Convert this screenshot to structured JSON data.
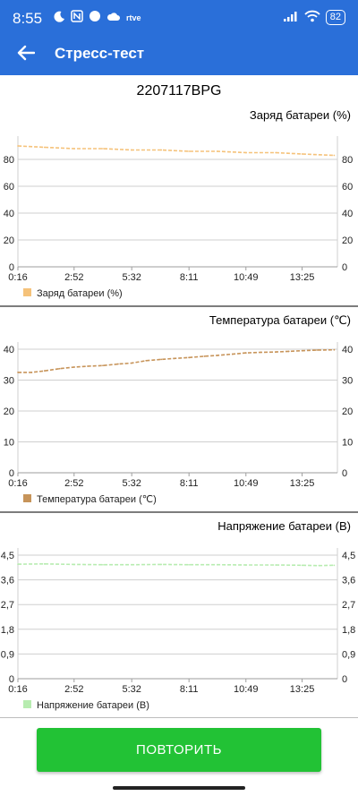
{
  "status": {
    "time": "8:55",
    "left_icons": [
      "moon-icon",
      "nfc-icon",
      "app-icon",
      "cloud-icon",
      "rtve-icon"
    ],
    "rtve_label": "rtve",
    "battery": "82"
  },
  "header": {
    "title": "Стресс-тест"
  },
  "device": {
    "model": "2207117BPG"
  },
  "actions": {
    "retry_label": "ПОВТОРИТЬ"
  },
  "chart_data": [
    {
      "type": "line",
      "title": "Заряд батареи (%)",
      "legend": "Заряд батареи (%)",
      "color": "#f5c27a",
      "x_ticks": [
        "0:16",
        "2:52",
        "5:32",
        "8:11",
        "10:49",
        "13:25"
      ],
      "y_ticks": [
        "0",
        "20",
        "40",
        "60",
        "80"
      ],
      "ylim": [
        0,
        92
      ],
      "grid": true,
      "legend_position": "bottom-left",
      "series": [
        {
          "name": "Заряд батареи (%)",
          "x": [
            0.27,
            1.5,
            2.87,
            4.2,
            5.53,
            6.9,
            8.18,
            9.5,
            10.82,
            12.2,
            13.42,
            14.9
          ],
          "y": [
            90,
            89,
            88,
            88,
            87,
            87,
            86,
            86,
            85,
            85,
            84,
            83
          ]
        }
      ]
    },
    {
      "type": "line",
      "title": "Температура батареи (℃)",
      "legend": "Температура батареи (℃)",
      "color": "#c7945a",
      "x_ticks": [
        "0:16",
        "2:52",
        "5:32",
        "8:11",
        "10:49",
        "13:25"
      ],
      "y_ticks": [
        "0",
        "10",
        "20",
        "30",
        "40"
      ],
      "ylim": [
        0,
        40
      ],
      "grid": true,
      "legend_position": "bottom-left",
      "series": [
        {
          "name": "Температура батареи (℃)",
          "x": [
            0.27,
            0.9,
            1.5,
            2.2,
            2.87,
            3.5,
            4.2,
            4.9,
            5.53,
            6.2,
            6.9,
            7.5,
            8.18,
            8.9,
            9.5,
            10.2,
            10.82,
            11.5,
            12.2,
            12.8,
            13.42,
            14.1,
            14.9
          ],
          "y": [
            32.5,
            32.5,
            33,
            33.7,
            34.2,
            34.5,
            34.7,
            35.2,
            35.5,
            36.3,
            36.7,
            37,
            37.3,
            37.7,
            38,
            38.4,
            38.8,
            39,
            39.1,
            39.3,
            39.5,
            39.7,
            39.8
          ]
        }
      ]
    },
    {
      "type": "line",
      "title": "Напряжение батареи (В)",
      "legend": "Напряжение батареи (В)",
      "color": "#b7ecb0",
      "x_ticks": [
        "0:16",
        "2:52",
        "5:32",
        "8:11",
        "10:49",
        "13:25"
      ],
      "y_ticks": [
        "0",
        "0,9",
        "1,8",
        "2,7",
        "3,6",
        "4,5"
      ],
      "ylim": [
        0,
        4.5
      ],
      "grid": true,
      "legend_position": "bottom-left",
      "series": [
        {
          "name": "Напряжение батареи (В)",
          "x": [
            0.27,
            1.5,
            2.87,
            4.2,
            5.53,
            6.9,
            8.18,
            9.5,
            10.82,
            12.2,
            13.42,
            14.2,
            14.9
          ],
          "y": [
            4.17,
            4.18,
            4.16,
            4.15,
            4.15,
            4.16,
            4.15,
            4.15,
            4.14,
            4.14,
            4.13,
            4.12,
            4.13
          ]
        }
      ]
    }
  ]
}
